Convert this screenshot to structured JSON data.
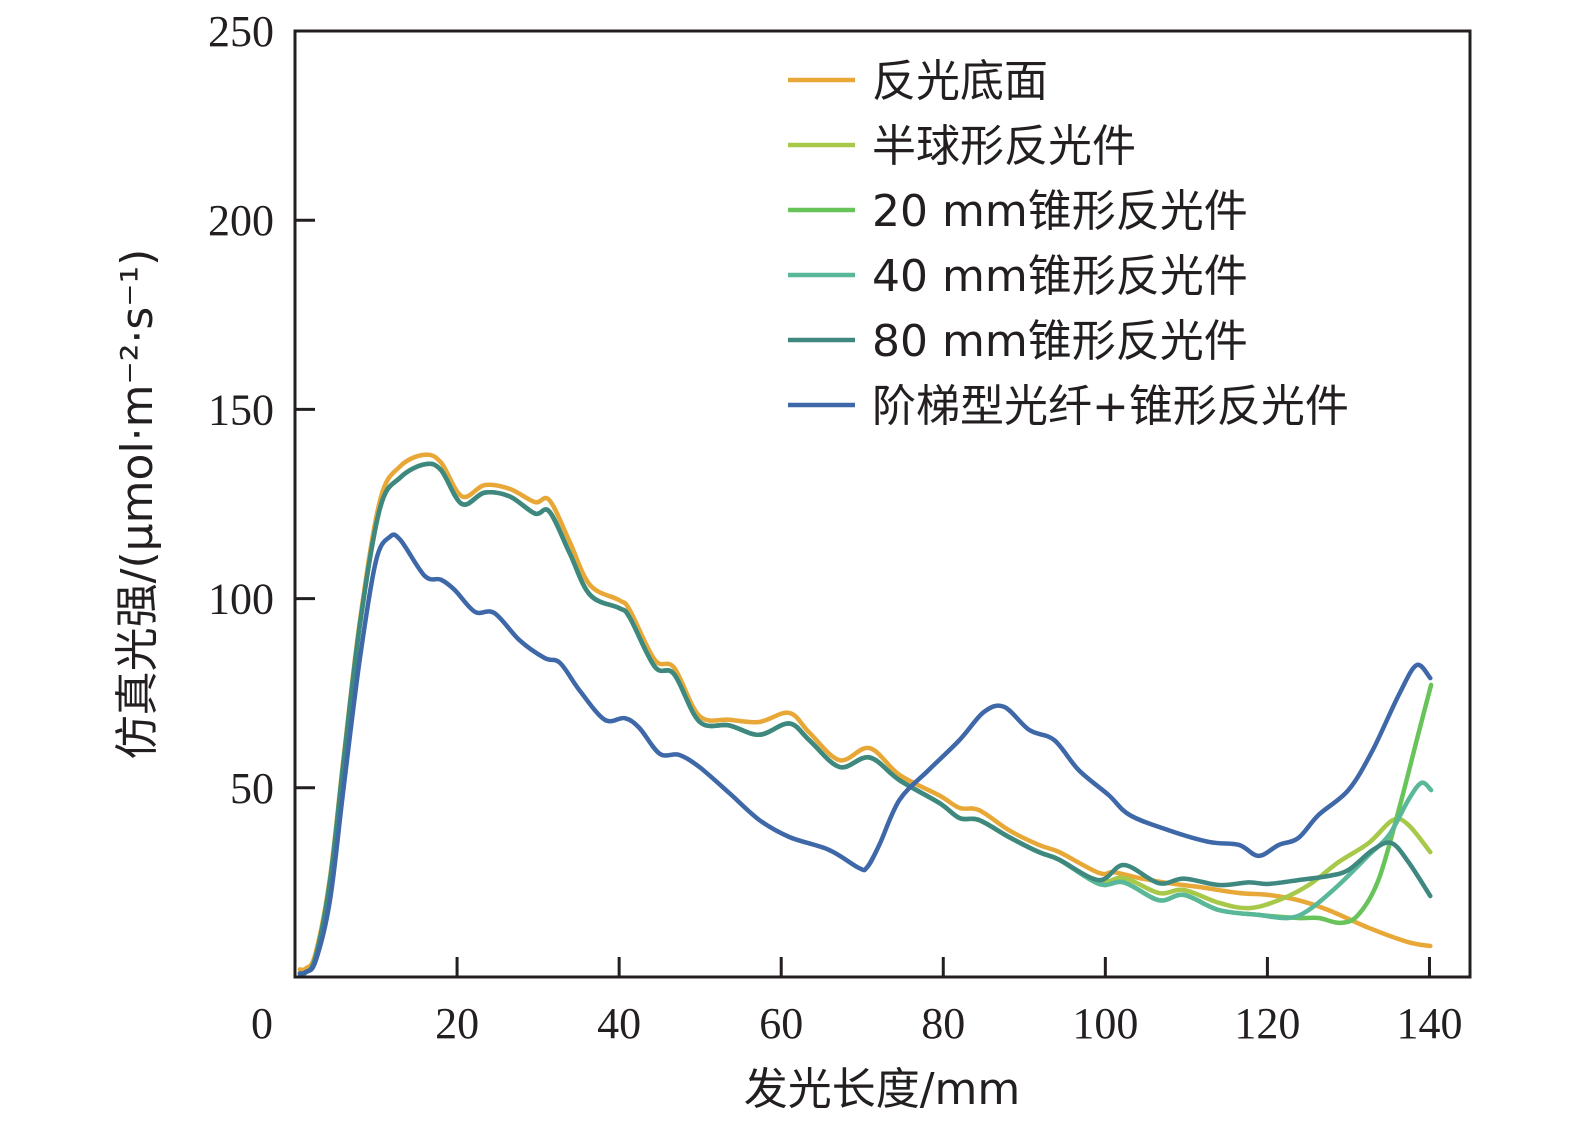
{
  "chart_data": {
    "type": "line",
    "title": "",
    "xlabel": "发光长度/mm",
    "ylabel": "仿真光强/(μmol·m⁻²·s⁻¹)",
    "xlim": [
      0,
      145
    ],
    "ylim": [
      0,
      250
    ],
    "xticks": [
      0,
      20,
      40,
      60,
      80,
      100,
      120,
      140
    ],
    "yticks": [
      0,
      50,
      100,
      150,
      200,
      250
    ],
    "xtick_labels": [
      "0",
      "20",
      "40",
      "60",
      "80",
      "100",
      "120",
      "140"
    ],
    "ytick_labels": [
      "0",
      "50",
      "100",
      "150",
      "200",
      "250"
    ],
    "grid": false,
    "legend_position": "top-right",
    "series": [
      {
        "name": "反光底面",
        "color": "#E8A838",
        "points": [
          [
            0.6,
            2
          ],
          [
            1.3,
            2.2
          ],
          [
            2.5,
            6
          ],
          [
            4.3,
            26
          ],
          [
            6,
            58
          ],
          [
            8,
            94
          ],
          [
            10.5,
            126
          ],
          [
            13,
            135
          ],
          [
            16,
            138
          ],
          [
            18,
            136
          ],
          [
            20.6,
            127
          ],
          [
            23.4,
            130
          ],
          [
            26.5,
            129
          ],
          [
            29.6,
            125.5
          ],
          [
            31.4,
            126
          ],
          [
            33.9,
            115
          ],
          [
            36.4,
            103.6
          ],
          [
            40,
            99.6
          ],
          [
            41.3,
            97
          ],
          [
            44.4,
            83.8
          ],
          [
            46.8,
            81.7
          ],
          [
            49.9,
            69
          ],
          [
            53.6,
            68
          ],
          [
            57.3,
            67.4
          ],
          [
            61,
            69.8
          ],
          [
            63.5,
            64.5
          ],
          [
            67.2,
            57.3
          ],
          [
            70.9,
            60.5
          ],
          [
            74.6,
            53.4
          ],
          [
            79.5,
            48
          ],
          [
            82,
            44.7
          ],
          [
            84.4,
            44.1
          ],
          [
            88.1,
            38.8
          ],
          [
            91.8,
            34.9
          ],
          [
            94.3,
            33
          ],
          [
            99.2,
            27.5
          ],
          [
            101,
            27.7
          ],
          [
            104.1,
            26.2
          ],
          [
            107.8,
            24.8
          ],
          [
            111.5,
            23.8
          ],
          [
            116.5,
            22.2
          ],
          [
            120.1,
            21.7
          ],
          [
            123.8,
            20.3
          ],
          [
            127.5,
            17.7
          ],
          [
            132.5,
            13
          ],
          [
            137.4,
            9.2
          ],
          [
            140.1,
            8.2
          ]
        ]
      },
      {
        "name": "半球形反光件",
        "color": "#A8C84A",
        "points": [
          [
            0.6,
            1
          ],
          [
            1.3,
            1.2
          ],
          [
            2.5,
            5
          ],
          [
            4.3,
            25
          ],
          [
            6,
            57
          ],
          [
            8,
            93
          ],
          [
            10.5,
            124
          ],
          [
            13,
            132
          ],
          [
            16,
            135.5
          ],
          [
            18,
            134
          ],
          [
            20.6,
            125
          ],
          [
            23.4,
            128
          ],
          [
            26.5,
            127
          ],
          [
            29.6,
            122.5
          ],
          [
            31.4,
            123
          ],
          [
            33.9,
            112
          ],
          [
            36.4,
            101
          ],
          [
            40,
            97.5
          ],
          [
            41.3,
            95
          ],
          [
            44.4,
            82
          ],
          [
            46.8,
            80
          ],
          [
            49.9,
            67.5
          ],
          [
            53.6,
            66.5
          ],
          [
            57.3,
            64
          ],
          [
            61,
            67
          ],
          [
            63.5,
            62.5
          ],
          [
            67.2,
            55.5
          ],
          [
            70.9,
            58
          ],
          [
            74.6,
            52
          ],
          [
            79.5,
            46
          ],
          [
            82,
            42
          ],
          [
            84.4,
            41.5
          ],
          [
            88.1,
            37
          ],
          [
            91.8,
            33
          ],
          [
            94.3,
            31
          ],
          [
            99.2,
            25.1
          ],
          [
            102.3,
            26.2
          ],
          [
            106.6,
            22.2
          ],
          [
            109.7,
            23
          ],
          [
            114,
            19.6
          ],
          [
            117.7,
            18.2
          ],
          [
            121.4,
            20.3
          ],
          [
            125.1,
            24.3
          ],
          [
            128.8,
            30.4
          ],
          [
            132.5,
            35.4
          ],
          [
            135.5,
            41.5
          ],
          [
            137.4,
            40.2
          ],
          [
            140.1,
            33
          ]
        ]
      },
      {
        "name": "20 mm锥形反光件",
        "color": "#68C45A",
        "points": [
          [
            0.6,
            1
          ],
          [
            1.3,
            1.2
          ],
          [
            2.5,
            5
          ],
          [
            4.3,
            25
          ],
          [
            6,
            57
          ],
          [
            8,
            93
          ],
          [
            10.5,
            124
          ],
          [
            13,
            132
          ],
          [
            16,
            135.5
          ],
          [
            18,
            134
          ],
          [
            20.6,
            125
          ],
          [
            23.4,
            128
          ],
          [
            26.5,
            127
          ],
          [
            29.6,
            122.5
          ],
          [
            31.4,
            123
          ],
          [
            33.9,
            112
          ],
          [
            36.4,
            101
          ],
          [
            40,
            97.5
          ],
          [
            41.3,
            95
          ],
          [
            44.4,
            82
          ],
          [
            46.8,
            80
          ],
          [
            49.9,
            67.5
          ],
          [
            53.6,
            66.5
          ],
          [
            57.3,
            64
          ],
          [
            61,
            67
          ],
          [
            63.5,
            62.5
          ],
          [
            67.2,
            55.5
          ],
          [
            70.9,
            58
          ],
          [
            74.6,
            52
          ],
          [
            79.5,
            46
          ],
          [
            82,
            42
          ],
          [
            84.4,
            41.5
          ],
          [
            88.1,
            37
          ],
          [
            91.8,
            33
          ],
          [
            94.3,
            31
          ],
          [
            99.2,
            24.6
          ],
          [
            102.3,
            25
          ],
          [
            106.6,
            20.3
          ],
          [
            109.7,
            21.7
          ],
          [
            114,
            17.7
          ],
          [
            118.9,
            16.4
          ],
          [
            123.8,
            15.6
          ],
          [
            126.3,
            15.6
          ],
          [
            129,
            14.3
          ],
          [
            131.2,
            16.4
          ],
          [
            133.7,
            25.6
          ],
          [
            136.2,
            44.1
          ],
          [
            138.6,
            64
          ],
          [
            140.2,
            77.2
          ]
        ]
      },
      {
        "name": "40 mm锥形反光件",
        "color": "#5AB89A",
        "points": [
          [
            0.6,
            1
          ],
          [
            1.3,
            1.2
          ],
          [
            2.5,
            5
          ],
          [
            4.3,
            25
          ],
          [
            6,
            57
          ],
          [
            8,
            93
          ],
          [
            10.5,
            124
          ],
          [
            13,
            132
          ],
          [
            16,
            135.5
          ],
          [
            18,
            134
          ],
          [
            20.6,
            125
          ],
          [
            23.4,
            128
          ],
          [
            26.5,
            127
          ],
          [
            29.6,
            122.5
          ],
          [
            31.4,
            123
          ],
          [
            33.9,
            112
          ],
          [
            36.4,
            101
          ],
          [
            40,
            97.5
          ],
          [
            41.3,
            95
          ],
          [
            44.4,
            82
          ],
          [
            46.8,
            80
          ],
          [
            49.9,
            67.5
          ],
          [
            53.6,
            66.5
          ],
          [
            57.3,
            64
          ],
          [
            61,
            67
          ],
          [
            63.5,
            62.5
          ],
          [
            67.2,
            55.5
          ],
          [
            70.9,
            58
          ],
          [
            74.6,
            52
          ],
          [
            79.5,
            46
          ],
          [
            82,
            42
          ],
          [
            84.4,
            41.5
          ],
          [
            88.1,
            37
          ],
          [
            91.8,
            33
          ],
          [
            94.3,
            31
          ],
          [
            99.2,
            24.6
          ],
          [
            102.3,
            25
          ],
          [
            106.6,
            20.3
          ],
          [
            109.7,
            21.7
          ],
          [
            114,
            17.7
          ],
          [
            118.9,
            16.4
          ],
          [
            122.6,
            15.6
          ],
          [
            125.1,
            17.7
          ],
          [
            128.8,
            24.3
          ],
          [
            132.5,
            32.2
          ],
          [
            135,
            37.5
          ],
          [
            137.4,
            46.8
          ],
          [
            139,
            51.3
          ],
          [
            140.2,
            49.4
          ]
        ]
      },
      {
        "name": "80 mm锥形反光件",
        "color": "#3E8880",
        "points": [
          [
            0.6,
            1
          ],
          [
            1.3,
            1.2
          ],
          [
            2.5,
            5
          ],
          [
            4.3,
            25
          ],
          [
            6,
            57
          ],
          [
            8,
            93
          ],
          [
            10.5,
            124
          ],
          [
            13,
            132
          ],
          [
            16,
            135.5
          ],
          [
            18,
            134
          ],
          [
            20.6,
            125
          ],
          [
            23.4,
            128
          ],
          [
            26.5,
            127
          ],
          [
            29.6,
            122.5
          ],
          [
            31.4,
            123
          ],
          [
            33.9,
            112
          ],
          [
            36.4,
            101
          ],
          [
            40,
            97.5
          ],
          [
            41.3,
            95
          ],
          [
            44.4,
            82
          ],
          [
            46.8,
            80
          ],
          [
            49.9,
            67.5
          ],
          [
            53.6,
            66.5
          ],
          [
            57.3,
            64
          ],
          [
            61,
            67
          ],
          [
            63.5,
            62.5
          ],
          [
            67.2,
            55.5
          ],
          [
            70.9,
            58
          ],
          [
            74.6,
            52
          ],
          [
            79.5,
            46
          ],
          [
            82,
            42
          ],
          [
            84.4,
            41.5
          ],
          [
            88.1,
            37
          ],
          [
            91.8,
            33
          ],
          [
            94.3,
            31
          ],
          [
            99.2,
            25.6
          ],
          [
            102.3,
            29.6
          ],
          [
            106.6,
            24.8
          ],
          [
            109.7,
            26
          ],
          [
            114,
            24.3
          ],
          [
            117.7,
            25
          ],
          [
            120.1,
            24.6
          ],
          [
            123.8,
            25.6
          ],
          [
            127.5,
            26.7
          ],
          [
            130,
            28.3
          ],
          [
            133,
            33.6
          ],
          [
            135.3,
            35.4
          ],
          [
            137.4,
            30.4
          ],
          [
            140.1,
            21.4
          ]
        ]
      },
      {
        "name": "阶梯型光纤+锥形反光件",
        "color": "#3E68A8",
        "points": [
          [
            0.6,
            0.8
          ],
          [
            1.3,
            1.3
          ],
          [
            2.5,
            4
          ],
          [
            4.3,
            20
          ],
          [
            6,
            50
          ],
          [
            8,
            84
          ],
          [
            10,
            110
          ],
          [
            11.7,
            116.3
          ],
          [
            13,
            115.5
          ],
          [
            16,
            106
          ],
          [
            18,
            105
          ],
          [
            19.7,
            102.3
          ],
          [
            22.2,
            96.5
          ],
          [
            24.6,
            96.2
          ],
          [
            27.7,
            89
          ],
          [
            30.8,
            84.3
          ],
          [
            32.7,
            83
          ],
          [
            35.1,
            75.8
          ],
          [
            38.2,
            68
          ],
          [
            40.7,
            68.4
          ],
          [
            42.5,
            65.8
          ],
          [
            45,
            59
          ],
          [
            47.4,
            58.7
          ],
          [
            49.9,
            55.5
          ],
          [
            53.6,
            48.6
          ],
          [
            57.3,
            41.5
          ],
          [
            61,
            37
          ],
          [
            65.9,
            33.6
          ],
          [
            69.6,
            28.8
          ],
          [
            70.6,
            29
          ],
          [
            72.1,
            34.9
          ],
          [
            74.6,
            46.8
          ],
          [
            78.2,
            54.7
          ],
          [
            82,
            62.6
          ],
          [
            85,
            70
          ],
          [
            87.5,
            71.4
          ],
          [
            90.6,
            65.3
          ],
          [
            93.7,
            62.6
          ],
          [
            96.7,
            54.7
          ],
          [
            100.4,
            48.1
          ],
          [
            103,
            42.8
          ],
          [
            107.8,
            38.8
          ],
          [
            112.8,
            35.7
          ],
          [
            116.5,
            34.9
          ],
          [
            118.9,
            32
          ],
          [
            121.4,
            34.9
          ],
          [
            123.8,
            36.7
          ],
          [
            126.3,
            42.8
          ],
          [
            130,
            49.4
          ],
          [
            133,
            60
          ],
          [
            136.2,
            74.5
          ],
          [
            138.4,
            82.4
          ],
          [
            140.1,
            79
          ]
        ]
      }
    ]
  }
}
